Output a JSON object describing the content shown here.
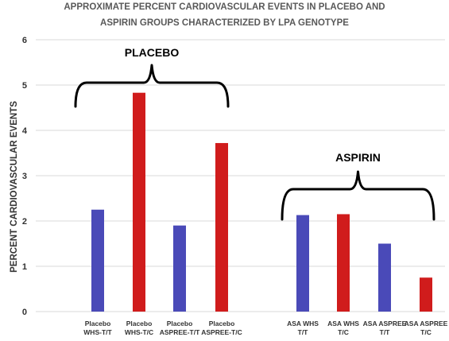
{
  "chart_data": {
    "type": "bar",
    "title": [
      "APPROXIMATE PERCENT CARDIOVASCULAR EVENTS IN PLACEBO AND",
      "ASPIRIN GROUPS CHARACTERIZED BY LPA GENOTYPE"
    ],
    "ylabel": "PERCENT CARDIOVASCULAR EVENTS",
    "xlabel": "",
    "ylim": [
      0,
      6
    ],
    "yticks": [
      "0",
      "1",
      "2",
      "3",
      "4",
      "5",
      "6"
    ],
    "grid": true,
    "categories": [
      [
        "Placebo",
        "WHS-T/T"
      ],
      [
        "Placebo",
        "WHS-T/C"
      ],
      [
        "Placebo",
        "ASPREE-T/T"
      ],
      [
        "Placebo",
        "ASPREE-T/C"
      ],
      [
        "ASA WHS",
        "T/T"
      ],
      [
        "ASA WHS",
        "T/C"
      ],
      [
        "ASA ASPREE",
        "T/T"
      ],
      [
        "ASA ASPREE",
        "T/C"
      ]
    ],
    "values": [
      2.25,
      4.83,
      1.9,
      3.72,
      2.13,
      2.15,
      1.5,
      0.75
    ],
    "bar_colors": [
      "#4a4ab8",
      "#d01c1c",
      "#4a4ab8",
      "#d01c1c",
      "#4a4ab8",
      "#d01c1c",
      "#4a4ab8",
      "#d01c1c"
    ],
    "annotations": [
      {
        "text": "PLACEBO",
        "from_category": 0,
        "to_category": 3
      },
      {
        "text": "ASPIRIN",
        "from_category": 4,
        "to_category": 7
      }
    ]
  }
}
